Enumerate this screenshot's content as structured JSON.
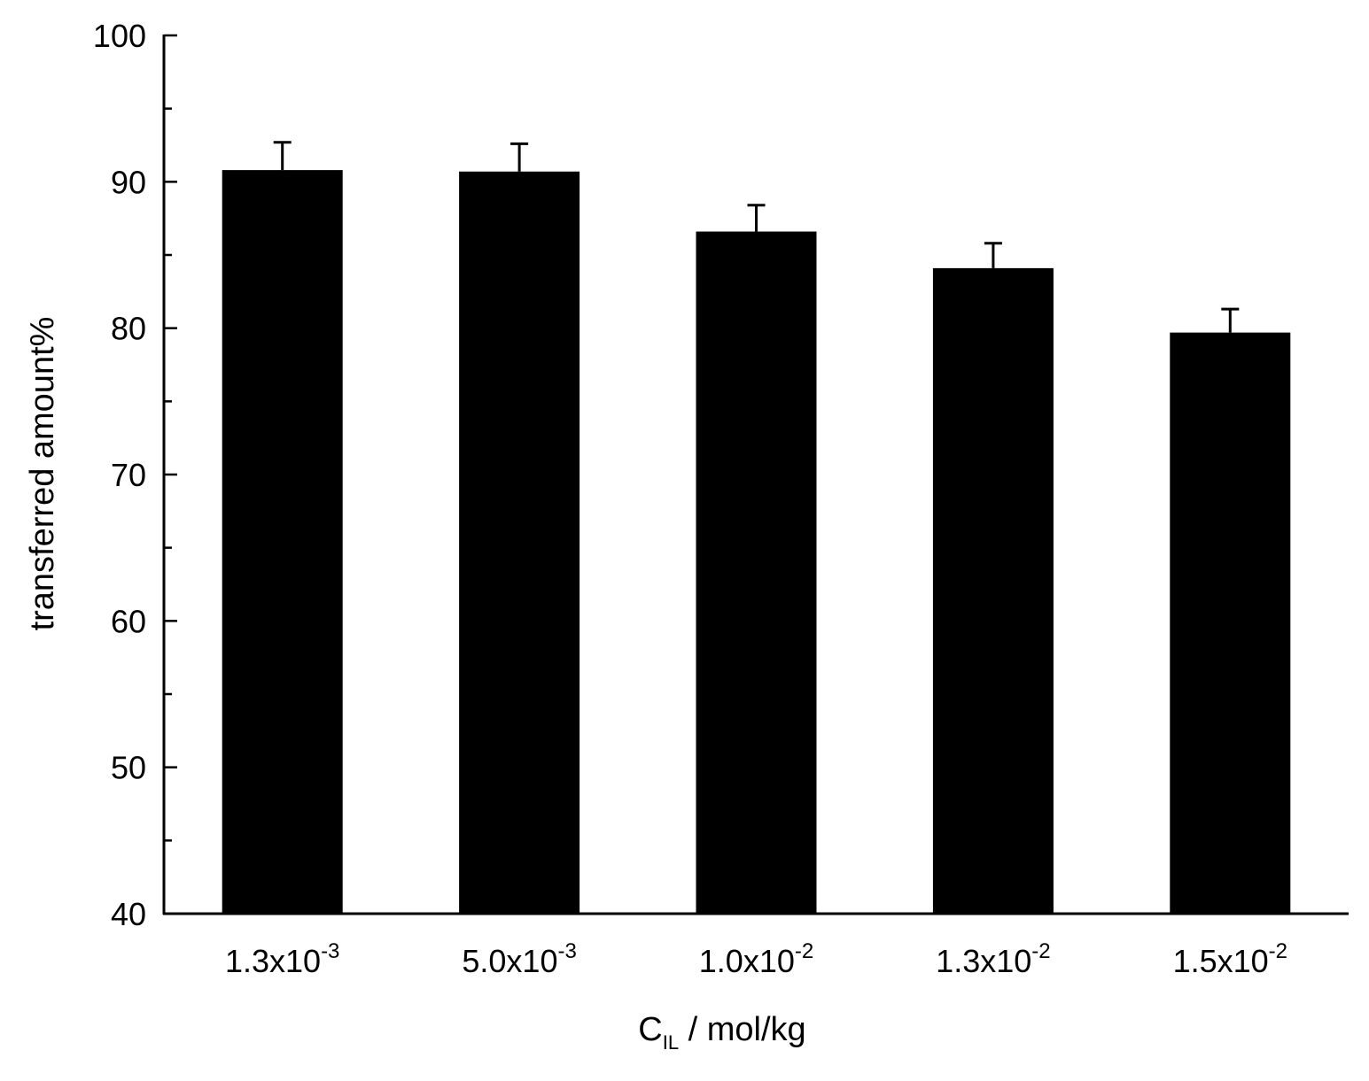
{
  "chart_data": {
    "type": "bar",
    "categories": [
      {
        "mantissa": "1.3x10",
        "exponent": "-3"
      },
      {
        "mantissa": "5.0x10",
        "exponent": "-3"
      },
      {
        "mantissa": "1.0x10",
        "exponent": "-2"
      },
      {
        "mantissa": "1.3x10",
        "exponent": "-2"
      },
      {
        "mantissa": "1.5x10",
        "exponent": "-2"
      }
    ],
    "values": [
      90.8,
      90.7,
      86.6,
      84.1,
      79.7
    ],
    "errors": [
      1.9,
      1.9,
      1.8,
      1.7,
      1.6
    ],
    "xlabel": {
      "main": "C",
      "subscript": "IL",
      "unit": " / mol/kg"
    },
    "ylabel": "transferred amount%",
    "ylim": [
      40,
      100
    ],
    "yticks": [
      40,
      50,
      60,
      70,
      80,
      90,
      100
    ],
    "bar_color": "#000000",
    "grid": false
  }
}
